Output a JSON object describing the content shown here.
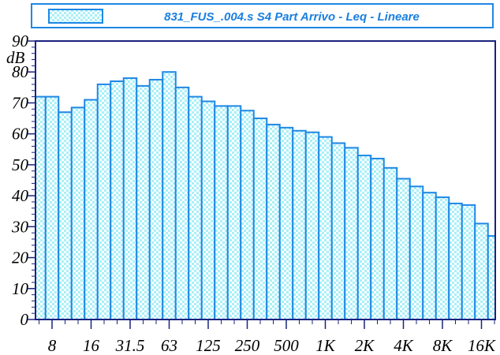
{
  "chart_data": {
    "type": "bar",
    "title": "831_FUS_.004.s S4 Part Arrivo - Leq - Lineare",
    "y_unit": "dB",
    "categories": [
      null,
      "8",
      null,
      null,
      "16",
      null,
      null,
      "31.5",
      null,
      null,
      "63",
      null,
      null,
      "125",
      null,
      null,
      "250",
      null,
      null,
      "500",
      null,
      null,
      "1K",
      null,
      null,
      "2K",
      null,
      null,
      "4K",
      null,
      null,
      "8K",
      null,
      null,
      "16K",
      null
    ],
    "values": [
      72,
      72,
      67,
      68.5,
      71,
      76,
      77,
      78,
      75.5,
      77.5,
      80,
      75,
      72,
      70.5,
      69,
      69,
      67.5,
      65,
      63,
      62,
      61,
      60.5,
      59,
      57,
      55.5,
      53,
      52,
      49,
      45.5,
      43,
      41,
      39.5,
      37.5,
      37,
      31,
      27
    ],
    "color": "#1e88e5",
    "fill": "#a8f0f8",
    "ylim": [
      0,
      90
    ],
    "yticks": [
      0,
      10,
      20,
      30,
      40,
      50,
      60,
      70,
      80,
      90
    ]
  }
}
